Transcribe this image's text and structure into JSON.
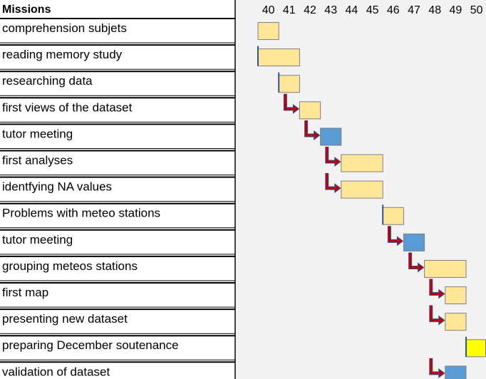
{
  "header": {
    "missions_label": "Missions"
  },
  "chart_data": {
    "type": "gantt",
    "weeks": [
      "40",
      "41",
      "42",
      "43",
      "44",
      "45",
      "46",
      "47",
      "48",
      "49",
      "50"
    ],
    "tasks": [
      {
        "label": "comprehension subjets",
        "start": "40",
        "end": "40",
        "color": "#FFE699",
        "linked": false
      },
      {
        "label": "reading memory study",
        "start": "40",
        "end": "41",
        "color": "#FFE699",
        "linked": false
      },
      {
        "label": "researching data",
        "start": "41",
        "end": "41",
        "color": "#FFE699",
        "linked": false
      },
      {
        "label": "first views of the dataset",
        "start": "42",
        "end": "42",
        "color": "#FFE699",
        "linked": true
      },
      {
        "label": "tutor meeting",
        "start": "43",
        "end": "43",
        "color": "#5B9BD5",
        "linked": true
      },
      {
        "label": "first analyses",
        "start": "44",
        "end": "45",
        "color": "#FFE699",
        "linked": true
      },
      {
        "label": "identfying NA values",
        "start": "44",
        "end": "45",
        "color": "#FFE699",
        "linked": true
      },
      {
        "label": "Problems with meteo stations",
        "start": "46",
        "end": "46",
        "color": "#FFE699",
        "linked": false
      },
      {
        "label": "tutor meeting",
        "start": "47",
        "end": "47",
        "color": "#5B9BD5",
        "linked": true
      },
      {
        "label": "grouping meteos  stations",
        "start": "48",
        "end": "49",
        "color": "#FFE699",
        "linked": true
      },
      {
        "label": "first map",
        "start": "49",
        "end": "49",
        "color": "#FFE699",
        "linked": true
      },
      {
        "label": "presenting new dataset",
        "start": "49",
        "end": "49",
        "color": "#FFE699",
        "linked": true
      },
      {
        "label": "preparing December soutenance",
        "start": "50",
        "end": "50",
        "color": "#FFFF00",
        "linked": false
      },
      {
        "label": "validation of dataset",
        "start": "49",
        "end": "49",
        "color": "#5B9BD5",
        "linked": true
      }
    ]
  }
}
